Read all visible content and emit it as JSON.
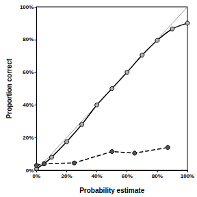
{
  "chart_data": {
    "type": "line",
    "x_label": "Probability estimate",
    "y_label": "Proportion correct",
    "xlim": [
      0,
      100
    ],
    "ylim": [
      0,
      100
    ],
    "xticks": [
      {
        "value": 0,
        "label": "0%"
      },
      {
        "value": 20,
        "label": "20%"
      },
      {
        "value": 40,
        "label": "40%"
      },
      {
        "value": 60,
        "label": "60%"
      },
      {
        "value": 80,
        "label": "80%"
      },
      {
        "value": 100,
        "label": "100%"
      }
    ],
    "yticks": [
      {
        "value": 0,
        "label": "0%"
      },
      {
        "value": 20,
        "label": "20%"
      },
      {
        "value": 40,
        "label": "40%"
      },
      {
        "value": 60,
        "label": "60%"
      },
      {
        "value": 80,
        "label": "80%"
      },
      {
        "value": 100,
        "label": "100%"
      }
    ],
    "grid": false,
    "series": [
      {
        "color": "#9a9a9a",
        "marker": "none",
        "line_style": "solid",
        "x": [
          0,
          100
        ],
        "values": [
          0,
          100
        ]
      },
      {
        "color": "#b0b0b0",
        "marker": "circle",
        "line_style": "solid",
        "x": [
          0,
          5,
          10,
          20,
          30,
          40,
          50,
          60,
          70,
          80,
          90,
          100
        ],
        "values": [
          1,
          4,
          8,
          17.5,
          28,
          40,
          50,
          60,
          70.5,
          79.5,
          86.5,
          90
        ]
      },
      {
        "color": "#555555",
        "marker": "circle",
        "line_style": "dashed",
        "x": [
          0,
          5,
          25,
          50,
          65,
          87
        ],
        "values": [
          3,
          4,
          4.5,
          11.5,
          10.5,
          14
        ]
      }
    ]
  }
}
